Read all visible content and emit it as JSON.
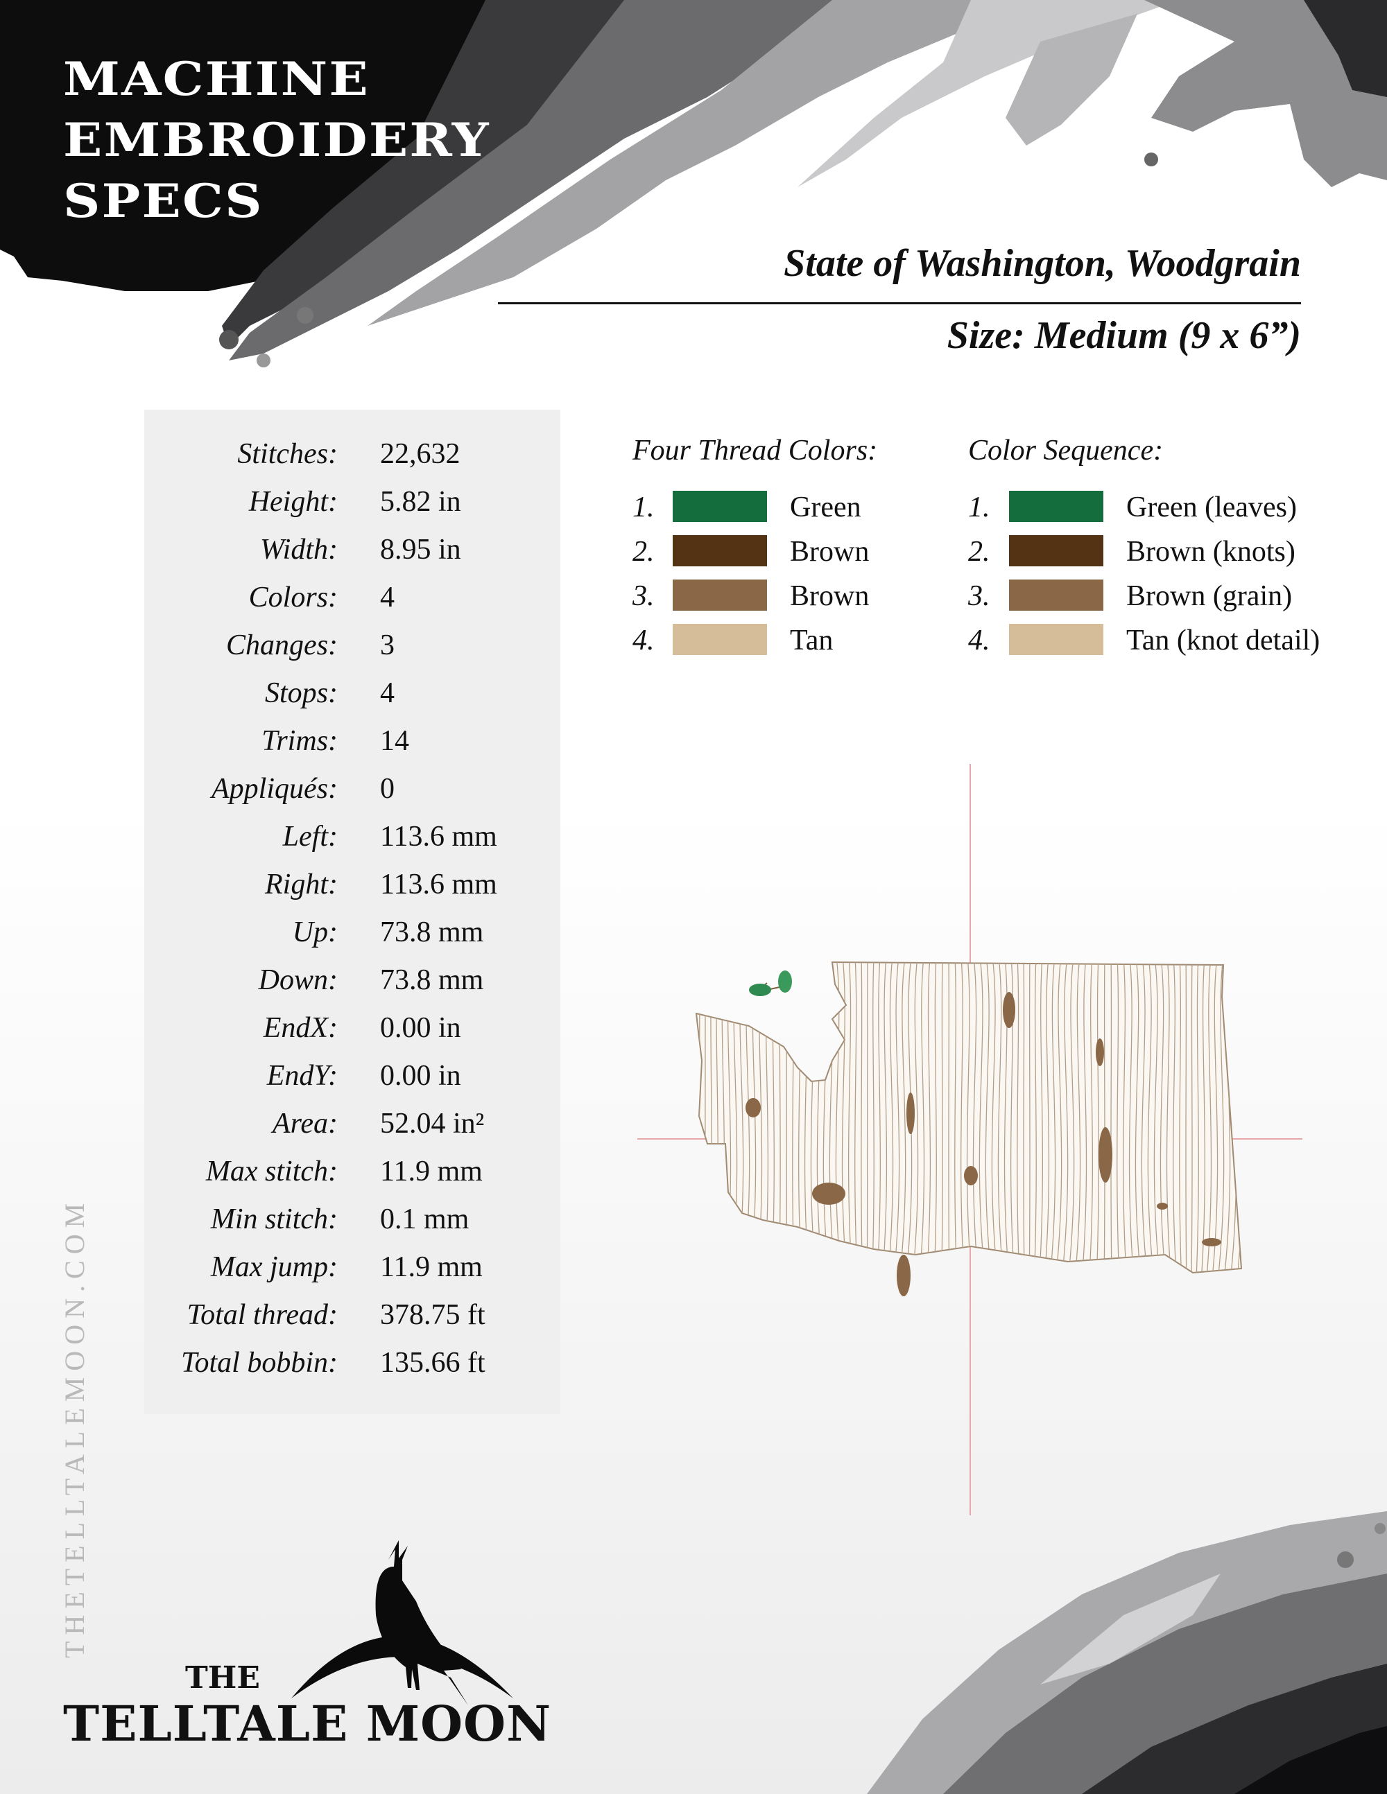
{
  "header": {
    "title_lines": [
      "MACHINE",
      "EMBROIDERY",
      "SPECS"
    ],
    "design_name": "State of Washington, Woodgrain",
    "size": "Size: Medium (9 x 6”)"
  },
  "stats": [
    {
      "label": "Stitches:",
      "value": "22,632"
    },
    {
      "label": "Height:",
      "value": "5.82 in"
    },
    {
      "label": "Width:",
      "value": "8.95 in"
    },
    {
      "label": "Colors:",
      "value": "4"
    },
    {
      "label": "Changes:",
      "value": "3"
    },
    {
      "label": "Stops:",
      "value": "4"
    },
    {
      "label": "Trims:",
      "value": "14"
    },
    {
      "label": "Appliqués:",
      "value": "0"
    },
    {
      "label": "Left:",
      "value": "113.6 mm"
    },
    {
      "label": "Right:",
      "value": "113.6 mm"
    },
    {
      "label": "Up:",
      "value": "73.8 mm"
    },
    {
      "label": "Down:",
      "value": "73.8 mm"
    },
    {
      "label": "EndX:",
      "value": "0.00 in"
    },
    {
      "label": "EndY:",
      "value": "0.00 in"
    },
    {
      "label": "Area:",
      "value": "52.04 in²"
    },
    {
      "label": "Max stitch:",
      "value": "11.9 mm"
    },
    {
      "label": "Min stitch:",
      "value": "0.1 mm"
    },
    {
      "label": "Max jump:",
      "value": "11.9 mm"
    },
    {
      "label": "Total thread:",
      "value": "378.75 ft"
    },
    {
      "label": "Total bobbin:",
      "value": "135.66 ft"
    }
  ],
  "thread_colors": {
    "heading": "Four Thread Colors:",
    "items": [
      {
        "num": "1.",
        "name": "Green",
        "color": "#136d3d"
      },
      {
        "num": "2.",
        "name": "Brown",
        "color": "#533314"
      },
      {
        "num": "3.",
        "name": "Brown",
        "color": "#8a6747"
      },
      {
        "num": "4.",
        "name": "Tan",
        "color": "#d5bd9a"
      }
    ]
  },
  "color_sequence": {
    "heading": "Color Sequence:",
    "items": [
      {
        "num": "1.",
        "name": "Green (leaves)",
        "color": "#136d3d"
      },
      {
        "num": "2.",
        "name": "Brown (knots)",
        "color": "#533314"
      },
      {
        "num": "3.",
        "name": "Brown (grain)",
        "color": "#8a6747"
      },
      {
        "num": "4.",
        "name": "Tan (knot detail)",
        "color": "#d5bd9a"
      }
    ]
  },
  "footer": {
    "website": "THETELLTALEMOON.COM",
    "logo_the": "THE",
    "logo_name": "TELLTALE MOON"
  }
}
